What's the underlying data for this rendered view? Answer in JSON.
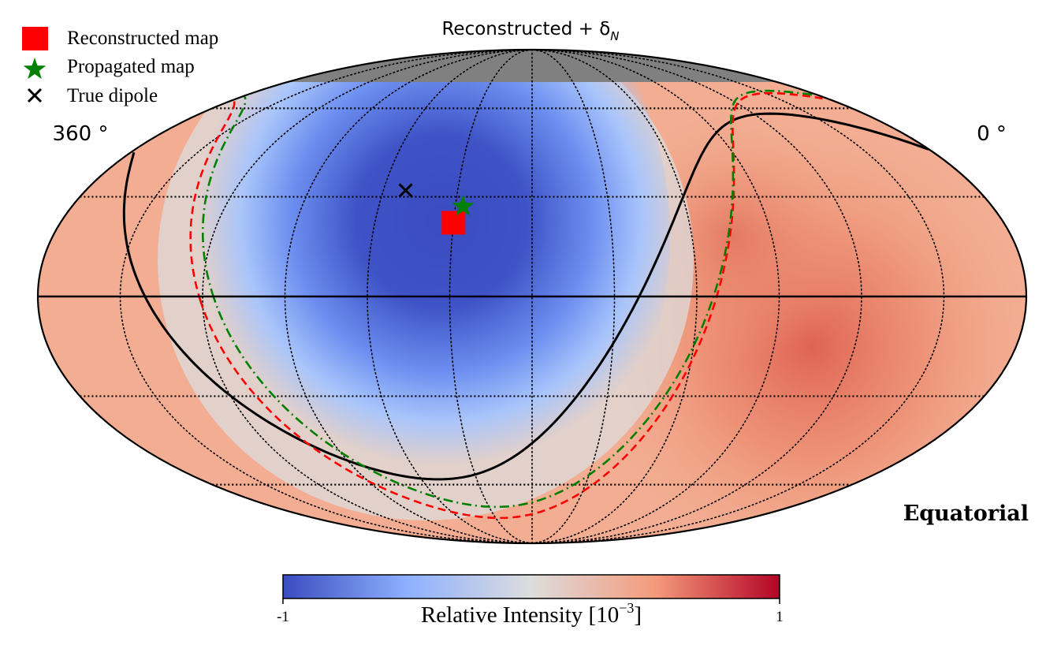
{
  "chart_data": {
    "type": "heatmap",
    "projection": "mollweide",
    "title": "Reconstructed + δ",
    "title_subscript": "N",
    "frame_label": "Equatorial",
    "ra_left_label": "360 °",
    "ra_right_label": "0 °",
    "grid": true,
    "colorbar": {
      "label": "Relative Intensity [10",
      "label_exponent": "−3",
      "label_close": "]",
      "min": -1,
      "max": 1,
      "min_label": "-1",
      "max_label": "1",
      "colormap": "coolwarm",
      "colors": [
        "#3b4cc0",
        "#8db0fe",
        "#dddddd",
        "#f49a7b",
        "#b40426"
      ]
    },
    "legend": [
      {
        "label": "Reconstructed map",
        "marker": "square",
        "color": "#ff0000"
      },
      {
        "label": "Propagated map",
        "marker": "star",
        "color": "#008000"
      },
      {
        "label": "True dipole",
        "marker": "x",
        "color": "#000000"
      }
    ],
    "markers": [
      {
        "name": "reconstructed-map-marker",
        "ra": 210,
        "dec": 22,
        "marker": "square",
        "color": "#ff0000"
      },
      {
        "name": "propagated-map-marker",
        "ra": 207,
        "dec": 27,
        "marker": "star",
        "color": "#008000"
      },
      {
        "name": "true-dipole-marker",
        "ra": 231,
        "dec": 32,
        "marker": "x",
        "color": "#000000"
      }
    ],
    "dipole_minimum": {
      "ra": 201,
      "dec": 30
    },
    "excess_maximum": {
      "ra": 45,
      "dec": -15
    },
    "unobserved_region": "dec > 70",
    "contours": [
      {
        "name": "reconstructed-contour",
        "style": "dashed",
        "color": "#ff0000"
      },
      {
        "name": "propagated-contour",
        "style": "dash-dot",
        "color": "#008000"
      },
      {
        "name": "true-dipole-contour",
        "style": "solid",
        "color": "#000000"
      }
    ]
  }
}
